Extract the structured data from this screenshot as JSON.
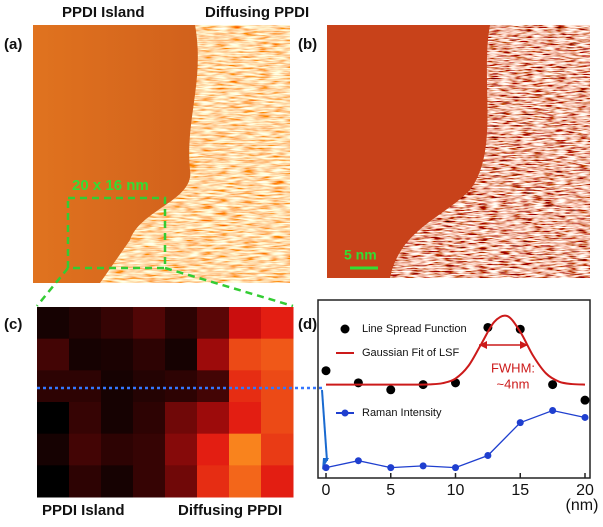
{
  "panel_a": {
    "label": "(a)",
    "left_title": "PPDI Island",
    "right_title": "Diffusing PPDI",
    "region_label": "20 x 16 nm"
  },
  "panel_b": {
    "label": "(b)",
    "scale_bar": "5 nm"
  },
  "panel_c": {
    "label": "(c)",
    "left_title": "PPDI Island",
    "right_title": "Diffusing PPDI",
    "heatmap": {
      "zlim": [
        0,
        1
      ],
      "colormap": [
        "#000000",
        "#e01010",
        "#ffa020"
      ],
      "values": [
        [
          0.05,
          0.08,
          0.12,
          0.18,
          0.1,
          0.2,
          0.45,
          0.55
        ],
        [
          0.15,
          0.05,
          0.06,
          0.1,
          0.05,
          0.35,
          0.7,
          0.75
        ],
        [
          0.1,
          0.1,
          0.05,
          0.08,
          0.1,
          0.15,
          0.6,
          0.7
        ],
        [
          0.0,
          0.12,
          0.05,
          0.1,
          0.25,
          0.35,
          0.55,
          0.7
        ],
        [
          0.05,
          0.15,
          0.1,
          0.12,
          0.3,
          0.55,
          0.9,
          0.65
        ],
        [
          0.0,
          0.1,
          0.05,
          0.12,
          0.25,
          0.6,
          0.8,
          0.55
        ]
      ]
    }
  },
  "chart_data": {
    "type": "line",
    "label": "(d)",
    "x_unit": "(nm)",
    "xlim": [
      0,
      20
    ],
    "xticks": [
      0,
      5,
      10,
      15,
      20
    ],
    "ylim": [
      0,
      1
    ],
    "annotation": {
      "line1": "FWHM:",
      "line2": "~4nm"
    },
    "series": [
      {
        "name": "Line Spread Function",
        "color": "#000000",
        "style": "markers",
        "x": [
          0,
          2.5,
          5,
          7.5,
          10,
          12.5,
          15,
          17.5,
          20
        ],
        "values": [
          0.62,
          0.55,
          0.51,
          0.54,
          0.55,
          0.87,
          0.86,
          0.54,
          0.45
        ]
      },
      {
        "name": "Gaussian Fit of LSF",
        "color": "#cc1a1a",
        "style": "line",
        "x": [
          0,
          1,
          2,
          3,
          4,
          5,
          6,
          7,
          8,
          9,
          10,
          11,
          12,
          13,
          14,
          15,
          16,
          17,
          18,
          19,
          20
        ],
        "values": [
          0.54,
          0.54,
          0.54,
          0.54,
          0.54,
          0.54,
          0.54,
          0.54,
          0.541,
          0.548,
          0.575,
          0.648,
          0.776,
          0.903,
          0.936,
          0.845,
          0.706,
          0.604,
          0.557,
          0.543,
          0.54
        ]
      },
      {
        "name": "Raman Intensity",
        "color": "#1f3fcf",
        "style": "line+markers",
        "x": [
          0,
          2.5,
          5,
          7.5,
          10,
          12.5,
          15,
          17.5,
          20
        ],
        "values": [
          0.06,
          0.1,
          0.06,
          0.07,
          0.06,
          0.13,
          0.32,
          0.39,
          0.35
        ]
      }
    ]
  }
}
